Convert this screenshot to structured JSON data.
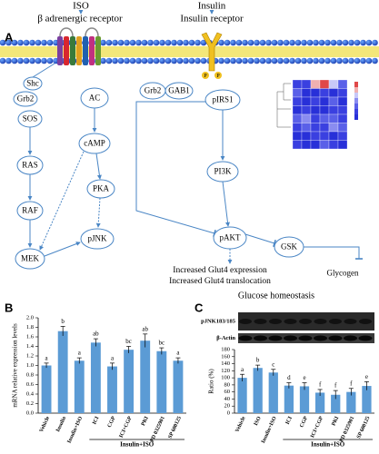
{
  "panels": [
    "A",
    "B",
    "C"
  ],
  "diagram": {
    "ligands": [
      {
        "name": "ISO",
        "receptor": "β adrenergic receptor"
      },
      {
        "name": "Insulin",
        "receptor": "Insulin receptor"
      }
    ],
    "phospho": "P",
    "nodes": [
      "Shc",
      "Grb2",
      "SOS",
      "RAS",
      "RAF",
      "MEK",
      "AC",
      "cAMP",
      "PKA",
      "pJNK",
      "Grb2",
      "GAB1",
      "pIRS1",
      "PI3K",
      "pAKT",
      "GSK",
      "Glycogen"
    ],
    "outputs": [
      "Increased Glut4 expression",
      "Increased Glut4 translocation"
    ],
    "outcome": "Glucose homeostasis"
  },
  "blot": {
    "bands": [
      "pJNK183/185",
      "β-Actin"
    ]
  },
  "chart_data": [
    {
      "type": "bar",
      "ylabel": "mRNA relative expression levels",
      "color": "#5b9bd5",
      "categories": [
        "Vehicle",
        "Insulin",
        "Insulin+ISO",
        "ICI",
        "CGP",
        "ICI+CGP",
        "PKI",
        "PD 0325901",
        "SP 600125"
      ],
      "values": [
        1.0,
        1.72,
        1.1,
        1.48,
        0.98,
        1.33,
        1.52,
        1.3,
        1.1
      ],
      "errors": [
        0.05,
        0.1,
        0.06,
        0.08,
        0.07,
        0.07,
        0.14,
        0.07,
        0.06
      ],
      "annotations": [
        "a",
        "b",
        "a",
        "ab",
        "a",
        "bc",
        "ab",
        "bc",
        "a"
      ],
      "group_label": "Insulin+ISO",
      "ylim": [
        0,
        2.0
      ],
      "yticks": [
        {
          "value": 0,
          "label": "0.0"
        },
        {
          "value": 0.2,
          "label": "0.2"
        },
        {
          "value": 0.4,
          "label": "0.4"
        },
        {
          "value": 0.6,
          "label": "0.6"
        },
        {
          "value": 0.8,
          "label": "0.8"
        },
        {
          "value": 1.0,
          "label": "1.0"
        },
        {
          "value": 1.2,
          "label": "1.2"
        },
        {
          "value": 1.4,
          "label": "1.4"
        },
        {
          "value": 1.6,
          "label": "1.6"
        },
        {
          "value": 1.8,
          "label": "1.8"
        },
        {
          "value": 2.0,
          "label": "2.0"
        }
      ]
    },
    {
      "type": "bar",
      "ylabel": "Ratio (%)",
      "color": "#5b9bd5",
      "categories": [
        "Vehicle",
        "ISO",
        "Insulin+ISO",
        "ICI",
        "CGP",
        "ICI+CGP",
        "PKI",
        "PD 0325901",
        "SP 600125"
      ],
      "values": [
        100,
        128,
        115,
        78,
        76,
        58,
        52,
        60,
        77
      ],
      "errors": [
        10,
        8,
        9,
        8,
        10,
        9,
        12,
        10,
        12
      ],
      "annotations": [
        "a",
        "b",
        "c",
        "d",
        "e",
        "f",
        "f",
        "f",
        "e"
      ],
      "group_label": "Insulin+ISO",
      "ylim": [
        0,
        180
      ],
      "yticks": [
        0,
        20,
        40,
        60,
        80,
        100,
        120,
        140,
        160,
        180
      ]
    }
  ]
}
